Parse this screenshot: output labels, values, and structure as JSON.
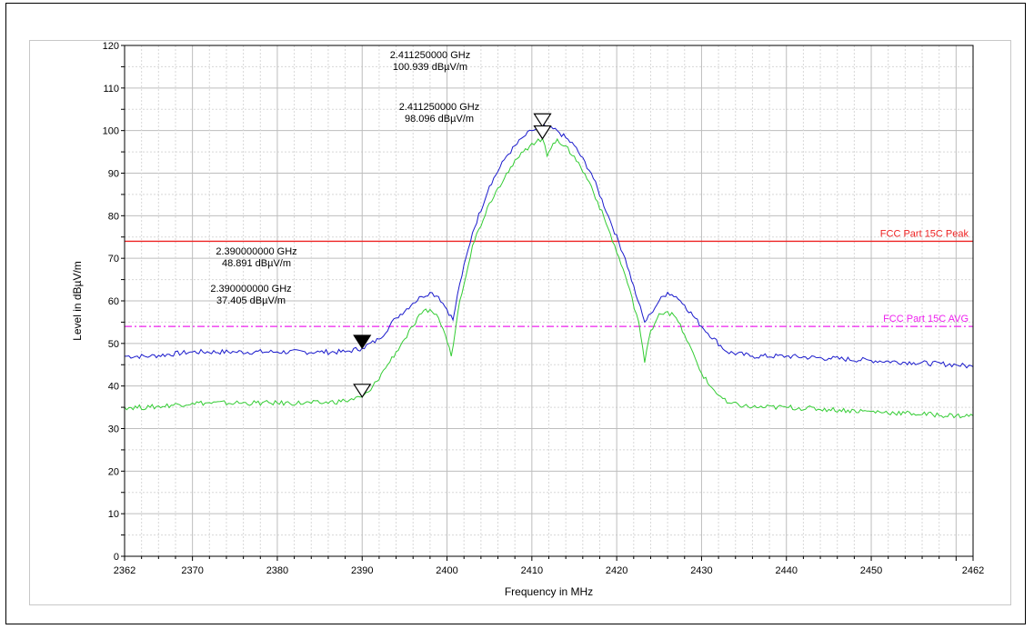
{
  "chart_data": {
    "type": "line",
    "xlabel": "Frequency in MHz",
    "ylabel": "Level in dBµV/m",
    "xlim": [
      2362,
      2462
    ],
    "ylim": [
      0,
      120
    ],
    "x_ticks": [
      "2362",
      "2370",
      "2380",
      "2390",
      "2400",
      "2410",
      "2420",
      "2430",
      "2440",
      "2450",
      "2462"
    ],
    "y_ticks": [
      "0",
      "10",
      "20",
      "30",
      "40",
      "50",
      "60",
      "70",
      "80",
      "90",
      "100",
      "110",
      "120"
    ],
    "grid": true,
    "series": [
      {
        "color": "#1a1acc",
        "x": [
          2362,
          2365,
          2370,
          2375,
          2380,
          2385,
          2388,
          2390,
          2392,
          2394,
          2396,
          2397,
          2398,
          2399,
          2400,
          2400.7,
          2401.5,
          2403,
          2405,
          2407,
          2409,
          2410,
          2411.25,
          2412,
          2413,
          2415,
          2417,
          2419,
          2421,
          2422.5,
          2423.3,
          2424,
          2425,
          2426,
          2427,
          2428,
          2430,
          2433,
          2436,
          2440,
          2445,
          2450,
          2455,
          2460,
          2462
        ],
        "y": [
          47,
          47,
          48,
          48,
          48,
          48,
          48,
          48.9,
          51,
          56,
          59.5,
          61,
          62,
          61,
          58,
          55.5,
          64,
          76,
          87,
          94,
          98.5,
          100,
          100.9,
          100.5,
          100,
          96.5,
          90,
          80,
          70,
          60,
          55,
          57,
          60,
          62,
          61,
          59,
          54,
          48,
          47,
          47,
          46.5,
          46,
          45.5,
          45,
          44.5
        ]
      },
      {
        "color": "#33cc33",
        "x": [
          2362,
          2365,
          2370,
          2375,
          2380,
          2385,
          2388,
          2390,
          2391,
          2393,
          2395,
          2396,
          2397,
          2398,
          2399,
          2399.8,
          2400.5,
          2401.5,
          2403,
          2405,
          2407,
          2409,
          2410,
          2411.25,
          2411.8,
          2412.5,
          2413,
          2415,
          2417,
          2419,
          2421,
          2422.6,
          2423.3,
          2424,
          2425,
          2426,
          2427,
          2428,
          2430,
          2431,
          2433,
          2436,
          2440,
          2445,
          2450,
          2455,
          2460,
          2462
        ],
        "y": [
          35,
          35,
          36,
          36,
          36,
          36,
          36.5,
          37.4,
          39,
          45,
          51,
          54,
          57,
          58,
          56,
          52,
          47,
          60,
          73,
          83,
          90,
          95,
          97,
          98.1,
          94,
          97,
          98,
          94,
          87,
          77,
          66,
          55,
          45.5,
          53,
          57,
          57.5,
          56,
          52,
          43,
          40,
          36,
          35,
          35,
          34.5,
          34,
          33.5,
          33,
          33
        ]
      }
    ],
    "limit_lines": [
      {
        "label": "FCC Part 15C Peak",
        "value": 74,
        "color": "#ee2222",
        "style": "solid"
      },
      {
        "label": "FCC Part 15C AVG",
        "value": 54,
        "color": "#ee22ee",
        "style": "dashdot"
      }
    ],
    "markers": [
      {
        "x": 2411.25,
        "y": 100.939,
        "filled": false,
        "freq_text": "2.411250000 GHz",
        "level_text": "100.939 dBµV/m"
      },
      {
        "x": 2411.25,
        "y": 98.096,
        "filled": false,
        "freq_text": "2.411250000 GHz",
        "level_text": "98.096 dBµV/m"
      },
      {
        "x": 2390,
        "y": 48.891,
        "filled": true,
        "freq_text": "2.390000000 GHz",
        "level_text": "48.891 dBµV/m"
      },
      {
        "x": 2390,
        "y": 37.405,
        "filled": false,
        "freq_text": "2.390000000 GHz",
        "level_text": "37.405 dBµV/m"
      }
    ]
  }
}
